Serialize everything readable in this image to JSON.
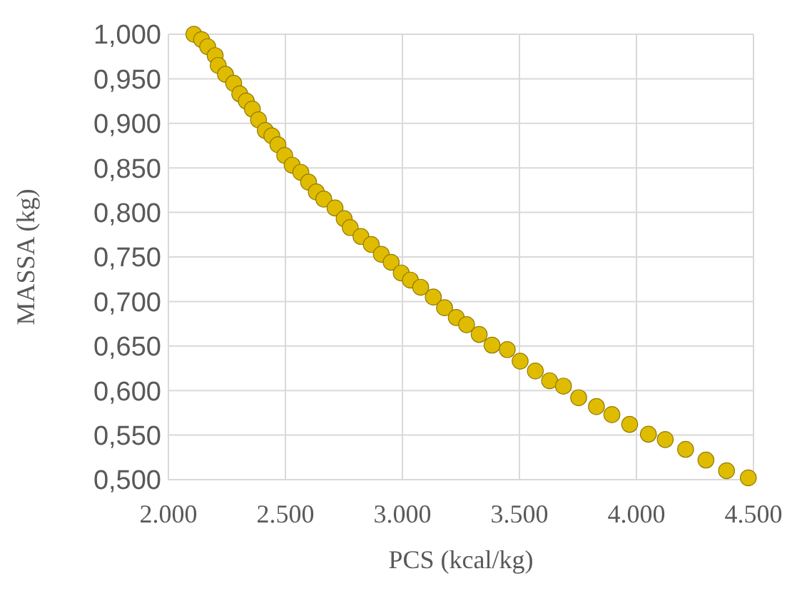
{
  "chart_data": {
    "type": "scatter",
    "xlabel": "PCS (kcal/kg)",
    "ylabel": "MASSA (kg)",
    "x": [
      2109,
      2142,
      2168,
      2200,
      2213,
      2244,
      2279,
      2305,
      2333,
      2359,
      2385,
      2414,
      2442,
      2468,
      2497,
      2529,
      2566,
      2599,
      2632,
      2664,
      2712,
      2751,
      2777,
      2823,
      2867,
      2910,
      2952,
      2995,
      3034,
      3078,
      3132,
      3180,
      3230,
      3274,
      3328,
      3383,
      3448,
      3503,
      3568,
      3629,
      3688,
      3753,
      3829,
      3895,
      3971,
      4051,
      4123,
      4210,
      4297,
      4385,
      4478
    ],
    "values": [
      1.0,
      0.994,
      0.986,
      0.976,
      0.965,
      0.955,
      0.945,
      0.933,
      0.925,
      0.916,
      0.904,
      0.892,
      0.886,
      0.876,
      0.864,
      0.853,
      0.845,
      0.834,
      0.823,
      0.815,
      0.805,
      0.793,
      0.783,
      0.773,
      0.764,
      0.753,
      0.744,
      0.732,
      0.724,
      0.716,
      0.705,
      0.693,
      0.682,
      0.674,
      0.663,
      0.651,
      0.646,
      0.633,
      0.622,
      0.611,
      0.605,
      0.592,
      0.582,
      0.573,
      0.562,
      0.551,
      0.545,
      0.534,
      0.522,
      0.51,
      0.502
    ],
    "color": "#e0bc00",
    "marker": "circle",
    "grid": true,
    "xlim": [
      2000,
      4500
    ],
    "xticks": [
      {
        "value": 2000,
        "label": "2.000"
      },
      {
        "value": 2500,
        "label": "2.500"
      },
      {
        "value": 3000,
        "label": "3.000"
      },
      {
        "value": 3500,
        "label": "3.500"
      },
      {
        "value": 4000,
        "label": "4.000"
      },
      {
        "value": 4500,
        "label": "4.500"
      }
    ],
    "ylim": [
      0.5,
      1.0
    ],
    "yticks": [
      {
        "value": 0.5,
        "label": "0,500"
      },
      {
        "value": 0.55,
        "label": "0,550"
      },
      {
        "value": 0.6,
        "label": "0,600"
      },
      {
        "value": 0.65,
        "label": "0,650"
      },
      {
        "value": 0.7,
        "label": "0,700"
      },
      {
        "value": 0.75,
        "label": "0,750"
      },
      {
        "value": 0.8,
        "label": "0,800"
      },
      {
        "value": 0.85,
        "label": "0,850"
      },
      {
        "value": 0.9,
        "label": "0,900"
      },
      {
        "value": 0.95,
        "label": "0,950"
      },
      {
        "value": 1.0,
        "label": "1,000"
      }
    ]
  }
}
